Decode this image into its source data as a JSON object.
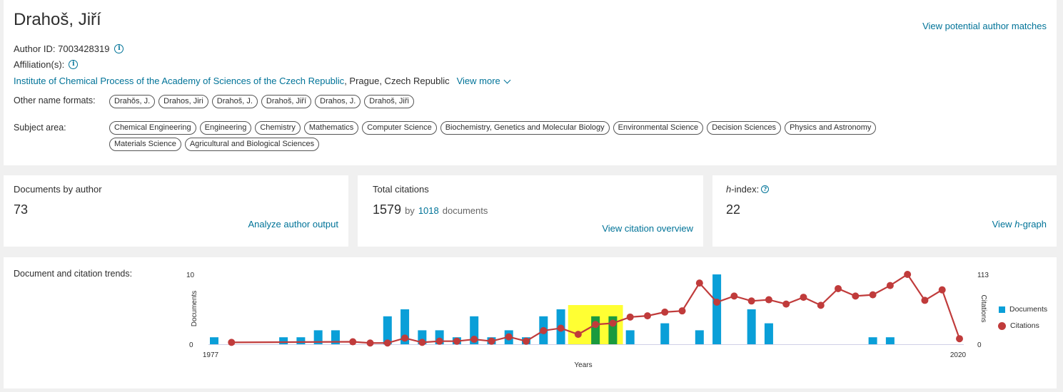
{
  "author": {
    "name": "Drahoš, Jiří",
    "id_label": "Author ID: 7003428319",
    "affiliation_label": "Affiliation(s):",
    "institution": "Institute of Chemical Process of the Academy of Sciences of the Czech Republic",
    "location": ", Prague, Czech Republic",
    "view_more": "View more",
    "view_matches": "View potential author matches"
  },
  "other_names": {
    "label": "Other name formats:",
    "items": [
      "Drahǒs, J.",
      "Drahos, Jiri",
      "Drahoš, J.",
      "Drahoš, Jiří",
      "Drahos, J.",
      "Drahoš, Jiři"
    ]
  },
  "subjects": {
    "label": "Subject area:",
    "items": [
      "Chemical Engineering",
      "Engineering",
      "Chemistry",
      "Mathematics",
      "Computer Science",
      "Biochemistry, Genetics and Molecular Biology",
      "Environmental Science",
      "Decision Sciences",
      "Physics and Astronomy",
      "Materials Science",
      "Agricultural and Biological Sciences"
    ]
  },
  "metrics": {
    "documents": {
      "label": "Documents by author",
      "value": "73",
      "link": "Analyze author output"
    },
    "citations": {
      "label": "Total citations",
      "value": "1579",
      "by": "by",
      "docs": "1018",
      "docs_suffix": "documents",
      "link": "View citation overview"
    },
    "hindex": {
      "label_h": "h",
      "label_rest": "-index:",
      "value": "22",
      "link_prefix": "View ",
      "link_h": "h",
      "link_suffix": "-graph"
    }
  },
  "trends": {
    "label": "Document and citation trends:"
  },
  "colors": {
    "documents": "#0a9fd8",
    "highlight_bar": "#1a9a3e",
    "citations": "#c03b3b",
    "highlight_bg": "#ffff33"
  },
  "chart_data": {
    "type": "bar",
    "x": [
      1977,
      1978,
      1979,
      1980,
      1981,
      1982,
      1983,
      1984,
      1985,
      1986,
      1987,
      1988,
      1989,
      1990,
      1991,
      1992,
      1993,
      1994,
      1995,
      1996,
      1997,
      1998,
      1999,
      2000,
      2001,
      2002,
      2003,
      2004,
      2005,
      2006,
      2007,
      2008,
      2009,
      2010,
      2011,
      2012,
      2013,
      2014,
      2015,
      2016,
      2017,
      2018,
      2019,
      2020
    ],
    "series": [
      {
        "name": "Documents",
        "axis": "left",
        "values": [
          1,
          0,
          0,
          0,
          1,
          1,
          2,
          2,
          0,
          0,
          4,
          5,
          2,
          2,
          1,
          4,
          1,
          2,
          1,
          4,
          5,
          0,
          4,
          4,
          2,
          0,
          3,
          0,
          2,
          10,
          0,
          5,
          3,
          0,
          0,
          0,
          0,
          0,
          1,
          1,
          0,
          0,
          0,
          0
        ]
      },
      {
        "name": "Citations",
        "axis": "right",
        "values": [
          null,
          3,
          null,
          null,
          null,
          null,
          null,
          null,
          4,
          2,
          2,
          10,
          3,
          5,
          5,
          8,
          5,
          12,
          5,
          22,
          26,
          16,
          32,
          34,
          44,
          46,
          52,
          54,
          99,
          68,
          78,
          70,
          72,
          65,
          76,
          63,
          90,
          78,
          80,
          95,
          113,
          71,
          88,
          9
        ]
      }
    ],
    "highlight_range": [
      1998,
      2000
    ],
    "x_tick_labels": [
      "1977",
      "2020"
    ],
    "xlabel": "Years",
    "ylabel_left": "Documents",
    "ylabel_right": "Citations",
    "ylim_left": [
      0,
      10
    ],
    "ylim_right": [
      0,
      113
    ],
    "y_tick_labels_left": [
      "0",
      "10"
    ],
    "y_tick_labels_right": [
      "0",
      "113"
    ],
    "legend": [
      "Documents",
      "Citations"
    ],
    "legend_position": "right"
  }
}
